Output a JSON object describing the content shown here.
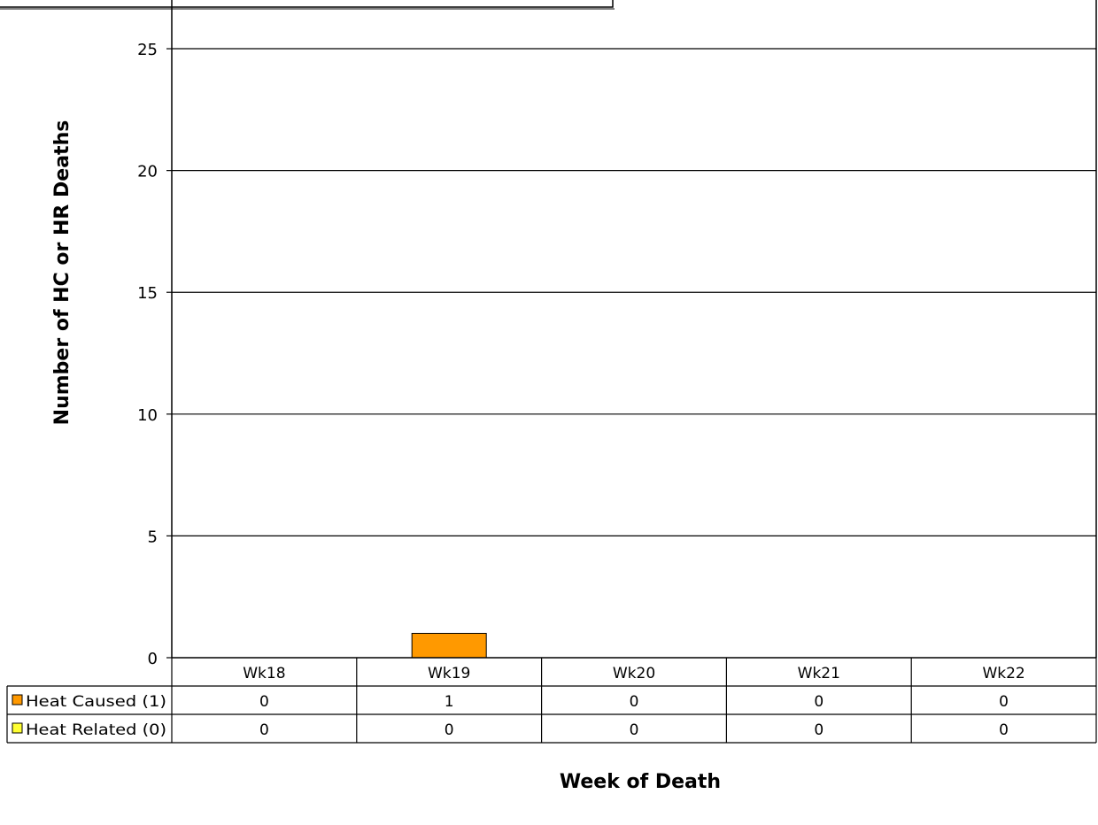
{
  "chart_data": {
    "type": "bar",
    "title": "",
    "xlabel": "Week of Death",
    "ylabel": "Number of HC or HR Deaths",
    "ylim": [
      0,
      27
    ],
    "yticks": [
      0,
      5,
      10,
      15,
      20,
      25
    ],
    "categories": [
      "Wk18",
      "Wk19",
      "Wk20",
      "Wk21",
      "Wk22"
    ],
    "series": [
      {
        "name": "Heat Caused (1)",
        "values": [
          0,
          1,
          0,
          0,
          0
        ],
        "color": "#FF9900"
      },
      {
        "name": "Heat Related (0)",
        "values": [
          0,
          0,
          0,
          0,
          0
        ],
        "color": "#FFFF33"
      }
    ],
    "grid": true,
    "legend": "data-table"
  }
}
